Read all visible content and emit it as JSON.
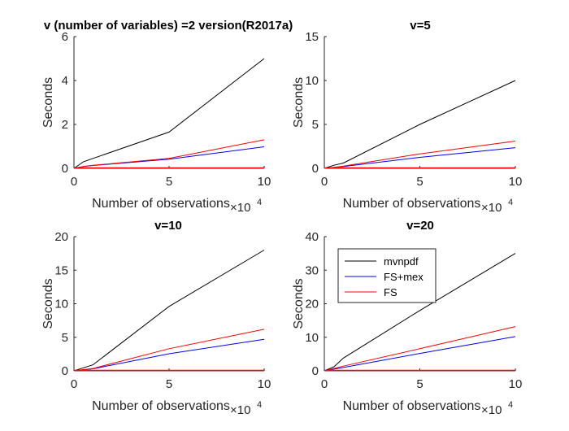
{
  "chart_data": [
    {
      "type": "line",
      "title": "v (number of variables) =2 version(R2017a)",
      "xlabel": "Number of observations",
      "ylabel": "Seconds",
      "x_exponent_label": "×10",
      "x_exponent_power": "4",
      "xlim": [
        0,
        10
      ],
      "ylim": [
        0,
        6
      ],
      "xticks": [
        "0",
        "5",
        "10"
      ],
      "yticks": [
        "0",
        "2",
        "4",
        "6"
      ],
      "series": [
        {
          "color": "#000000",
          "points": [
            [
              0,
              0
            ],
            [
              0.5,
              0.3
            ],
            [
              1,
              0.45
            ],
            [
              5,
              1.65
            ],
            [
              10,
              5.0
            ]
          ]
        },
        {
          "color": "#0000ff",
          "points": [
            [
              0,
              0
            ],
            [
              0.5,
              0.08
            ],
            [
              1,
              0.13
            ],
            [
              5,
              0.42
            ],
            [
              10,
              0.98
            ]
          ]
        },
        {
          "color": "#ff0000",
          "points": [
            [
              0,
              0
            ],
            [
              0.5,
              0.09
            ],
            [
              1,
              0.14
            ],
            [
              5,
              0.45
            ],
            [
              10,
              1.3
            ]
          ]
        }
      ]
    },
    {
      "type": "line",
      "title": "v=5",
      "xlabel": "Number of observations",
      "ylabel": "Seconds",
      "x_exponent_label": "×10",
      "x_exponent_power": "4",
      "xlim": [
        0,
        10
      ],
      "ylim": [
        0,
        15
      ],
      "xticks": [
        "0",
        "5",
        "10"
      ],
      "yticks": [
        "0",
        "5",
        "10",
        "15"
      ],
      "series": [
        {
          "color": "#000000",
          "points": [
            [
              0,
              0
            ],
            [
              0.5,
              0.35
            ],
            [
              1,
              0.6
            ],
            [
              5,
              5.0
            ],
            [
              10,
              10.0
            ]
          ]
        },
        {
          "color": "#0000ff",
          "points": [
            [
              0,
              0
            ],
            [
              0.5,
              0.1
            ],
            [
              1,
              0.2
            ],
            [
              5,
              1.25
            ],
            [
              10,
              2.35
            ]
          ]
        },
        {
          "color": "#ff0000",
          "points": [
            [
              0,
              0
            ],
            [
              0.5,
              0.12
            ],
            [
              1,
              0.25
            ],
            [
              5,
              1.65
            ],
            [
              10,
              3.1
            ]
          ]
        }
      ]
    },
    {
      "type": "line",
      "title": "v=10",
      "xlabel": "Number of observations",
      "ylabel": "Seconds",
      "x_exponent_label": "×10",
      "x_exponent_power": "4",
      "xlim": [
        0,
        10
      ],
      "ylim": [
        0,
        20
      ],
      "xticks": [
        "0",
        "5",
        "10"
      ],
      "yticks": [
        "0",
        "5",
        "10",
        "15",
        "20"
      ],
      "series": [
        {
          "color": "#000000",
          "points": [
            [
              0,
              0
            ],
            [
              0.5,
              0.45
            ],
            [
              1,
              0.9
            ],
            [
              5,
              9.6
            ],
            [
              10,
              18.0
            ]
          ]
        },
        {
          "color": "#0000ff",
          "points": [
            [
              0,
              0
            ],
            [
              0.5,
              0.15
            ],
            [
              1,
              0.3
            ],
            [
              5,
              2.55
            ],
            [
              10,
              4.7
            ]
          ]
        },
        {
          "color": "#ff0000",
          "points": [
            [
              0,
              0
            ],
            [
              0.5,
              0.18
            ],
            [
              1,
              0.35
            ],
            [
              5,
              3.3
            ],
            [
              10,
              6.2
            ]
          ]
        }
      ]
    },
    {
      "type": "line",
      "title": "v=20",
      "xlabel": "Number of observations",
      "ylabel": "Seconds",
      "x_exponent_label": "×10",
      "x_exponent_power": "4",
      "xlim": [
        0,
        10
      ],
      "ylim": [
        0,
        40
      ],
      "xticks": [
        "0",
        "5",
        "10"
      ],
      "yticks": [
        "0",
        "10",
        "20",
        "30",
        "40"
      ],
      "legend": {
        "placement": "top-left",
        "entries": [
          "mvnpdf",
          "FS+mex",
          "FS"
        ]
      },
      "series": [
        {
          "name": "mvnpdf",
          "color": "#000000",
          "points": [
            [
              0,
              0
            ],
            [
              0.5,
              1.2
            ],
            [
              1,
              3.8
            ],
            [
              5,
              18.0
            ],
            [
              10,
              35.0
            ]
          ]
        },
        {
          "name": "FS+mex",
          "color": "#0000ff",
          "points": [
            [
              0,
              0
            ],
            [
              0.5,
              0.5
            ],
            [
              1,
              1.0
            ],
            [
              5,
              5.2
            ],
            [
              10,
              10.2
            ]
          ]
        },
        {
          "name": "FS",
          "color": "#ff0000",
          "points": [
            [
              0,
              0
            ],
            [
              0.5,
              0.7
            ],
            [
              1,
              1.4
            ],
            [
              5,
              6.6
            ],
            [
              10,
              13.2
            ]
          ]
        }
      ]
    }
  ]
}
